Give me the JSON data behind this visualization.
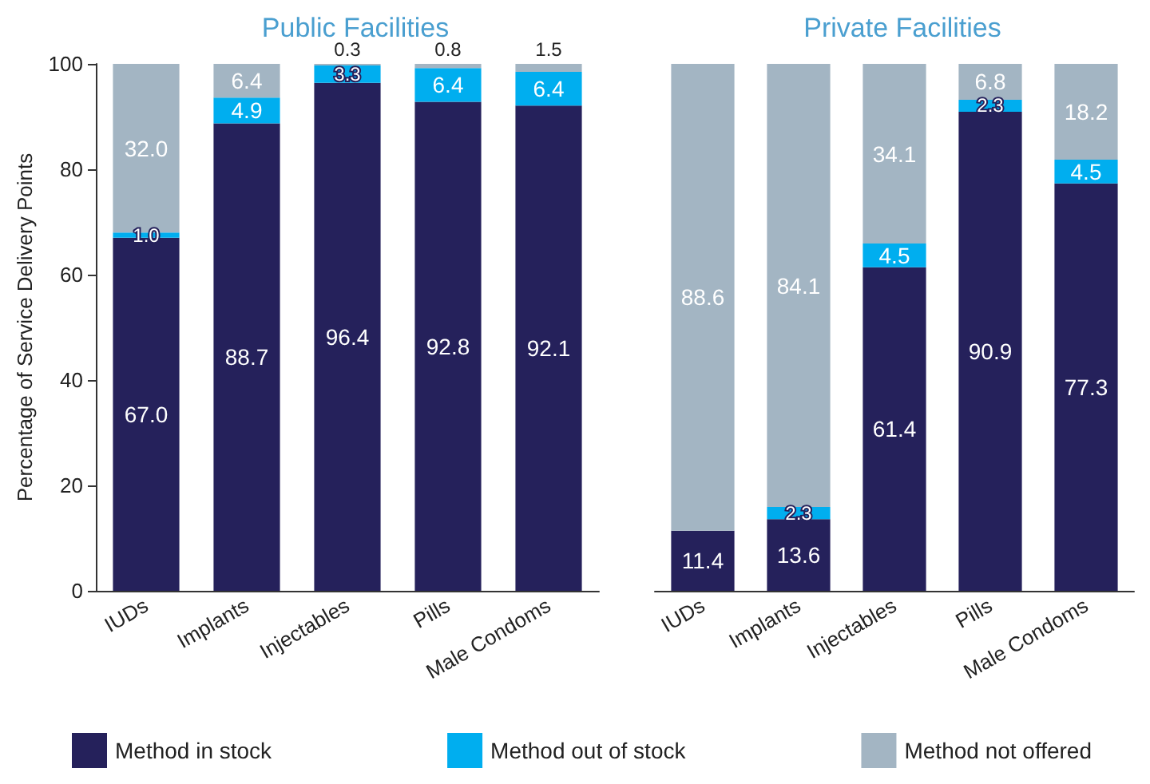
{
  "chart_data": [
    {
      "type": "bar",
      "title": "Public Facilities",
      "ylabel": "Percentage of Service Delivery Points",
      "stacked": true,
      "categories": [
        "IUDs",
        "Implants",
        "Injectables",
        "Pills",
        "Male Condoms"
      ],
      "ylim": [
        0,
        100
      ],
      "yticks": [
        0,
        20,
        40,
        60,
        80,
        100
      ],
      "grid": false,
      "legend": "bottom",
      "series": [
        {
          "name": "Method in stock",
          "color": "#25215b",
          "values": [
            67.0,
            88.7,
            96.4,
            92.8,
            92.1
          ],
          "value_labels": [
            "67.0",
            "88.7",
            "96.4",
            "92.8",
            "92.1"
          ]
        },
        {
          "name": "Method out of stock",
          "color": "#00aeef",
          "values": [
            1.0,
            4.9,
            3.3,
            6.4,
            6.4
          ],
          "value_labels": [
            "1.0",
            "4.9",
            "3.3",
            "6.4",
            "6.4"
          ]
        },
        {
          "name": "Method not offered",
          "color": "#a3b5c3",
          "values": [
            32.0,
            6.4,
            0.3,
            0.8,
            1.5
          ],
          "value_labels": [
            "32.0",
            "6.4",
            "0.3",
            "0.8",
            "1.5"
          ]
        }
      ]
    },
    {
      "type": "bar",
      "title": "Private Facilities",
      "stacked": true,
      "categories": [
        "IUDs",
        "Implants",
        "Injectables",
        "Pills",
        "Male Condoms"
      ],
      "ylim": [
        0,
        100
      ],
      "yticks": [
        0,
        20,
        40,
        60,
        80,
        100
      ],
      "grid": false,
      "tick_labels": "x",
      "legend": false,
      "series": [
        {
          "color": "#25215b",
          "values": [
            11.4,
            13.6,
            61.4,
            90.9,
            77.3
          ],
          "value_labels": [
            "11.4",
            "13.6",
            "61.4",
            "90.9",
            "77.3"
          ]
        },
        {
          "color": "#00aeef",
          "values": [
            null,
            2.3,
            4.5,
            2.3,
            4.5
          ],
          "value_labels": [
            null,
            "2.3",
            "4.5",
            "2.3",
            "4.5"
          ]
        },
        {
          "color": "#a3b5c3",
          "values": [
            88.6,
            84.1,
            34.1,
            6.8,
            18.2
          ],
          "value_labels": [
            "88.6",
            "84.1",
            "34.1",
            "6.8",
            "18.2"
          ]
        }
      ]
    }
  ]
}
